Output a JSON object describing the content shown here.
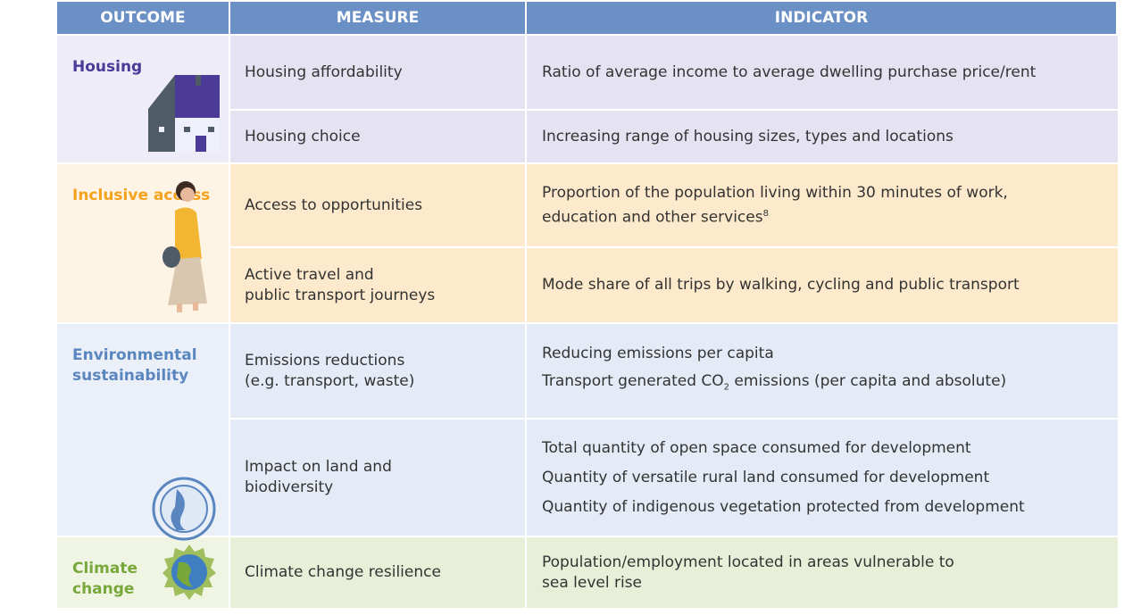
{
  "header": [
    "OUTCOME",
    "MEASURE",
    "INDICATOR"
  ],
  "groups": [
    {
      "outcome": [
        "Housing"
      ],
      "color": "#4b3a97",
      "outcome_bg": "#eeecf6",
      "row_bg": "#e5e3f1",
      "rows": [
        {
          "measure": [
            "Housing affordability"
          ],
          "indicators": [
            "Ratio of average income to average dwelling purchase price/rent"
          ]
        },
        {
          "measure": [
            "Housing choice"
          ],
          "indicators": [
            "Increasing range of housing sizes, types and locations"
          ]
        }
      ]
    },
    {
      "outcome": [
        "Inclusive access"
      ],
      "color": "#f4a21c",
      "outcome_bg": "#fef4e6",
      "row_bg": "#fde9cb",
      "rows": [
        {
          "measure": [
            "Access to opportunities"
          ],
          "indicators": [
            "Proportion of the population living within 30 minutes of work,",
            {
              "text": "education and other services",
              "sup": "8"
            }
          ]
        },
        {
          "measure": [
            "Active travel and",
            "public transport journeys"
          ],
          "indicators": [
            "Mode share of all trips by walking, cycling and public transport"
          ]
        }
      ]
    },
    {
      "outcome": [
        "Environmental",
        "sustainability"
      ],
      "color": "#5a86c0",
      "outcome_bg": "#ebf0f8",
      "row_bg": "#e4ebf6",
      "rows": [
        {
          "measure": [
            "Emissions reductions",
            "(e.g. transport, waste)"
          ],
          "indicators": [
            "Reducing emissions per capita",
            {
              "text": "Transport generated CO",
              "sub": "2",
              "after": " emissions (per capita and absolute)"
            }
          ]
        },
        {
          "measure": [
            "Impact on land and",
            "biodiversity"
          ],
          "indicators": [
            "Total quantity of open space consumed for development",
            "Quantity of versatile rural land consumed for development",
            "Quantity of indigenous vegetation protected from development"
          ]
        }
      ]
    },
    {
      "outcome": [
        "Climate",
        "change"
      ],
      "color": "#78a83a",
      "outcome_bg": "#eff4e3",
      "row_bg": "#e8efd8",
      "rows": [
        {
          "measure": [
            "Climate change resilience"
          ],
          "indicators": [
            "Population/employment located in areas vulnerable to",
            "sea level rise"
          ]
        }
      ]
    }
  ]
}
